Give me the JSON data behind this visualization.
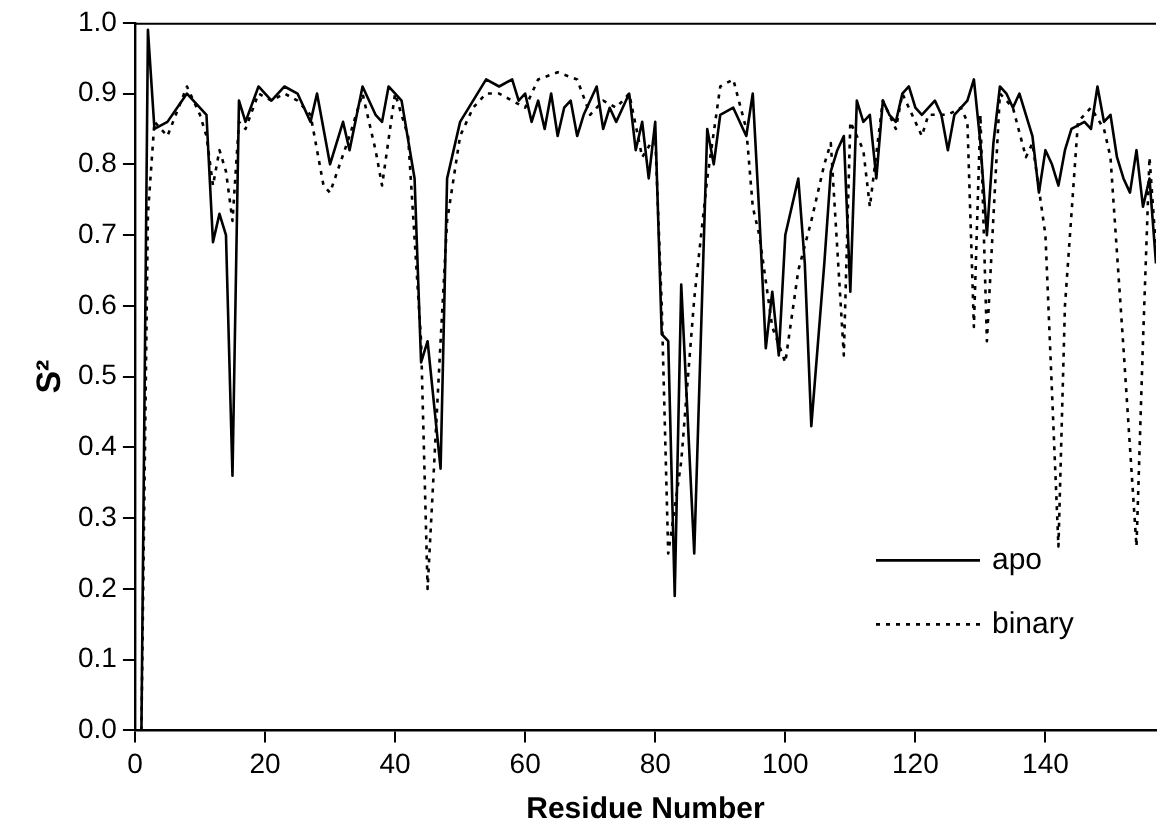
{
  "chart_data": {
    "type": "line",
    "xlabel": "Residue Number",
    "ylabel": "S²",
    "xlim": [
      0,
      157
    ],
    "xticks": [
      0,
      20,
      40,
      60,
      80,
      100,
      120,
      140
    ],
    "ylim": [
      0,
      1
    ],
    "yticks": [
      {
        "value": 0,
        "label": "0.0"
      },
      {
        "value": 0.1,
        "label": "0.1"
      },
      {
        "value": 0.2,
        "label": "0.2"
      },
      {
        "value": 0.3,
        "label": "0.3"
      },
      {
        "value": 0.4,
        "label": "0.4"
      },
      {
        "value": 0.5,
        "label": "0.5"
      },
      {
        "value": 0.6,
        "label": "0.6"
      },
      {
        "value": 0.7,
        "label": "0.7"
      },
      {
        "value": 0.8,
        "label": "0.8"
      },
      {
        "value": 0.9,
        "label": "0.9"
      },
      {
        "value": 1,
        "label": "1.0"
      }
    ],
    "grid": false,
    "legend": "bottom right",
    "marker": "none",
    "series": [
      {
        "name": "apo",
        "color": "#000000",
        "line_style": "solid",
        "x": [
          1,
          2,
          3,
          5,
          8,
          11,
          12,
          13,
          14,
          15,
          16,
          17,
          19,
          21,
          23,
          25,
          27,
          28,
          30,
          32,
          33,
          35,
          37,
          38,
          39,
          41,
          43,
          44,
          45,
          47,
          48,
          50,
          52,
          54,
          56,
          58,
          59,
          60,
          61,
          62,
          63,
          64,
          65,
          66,
          67,
          68,
          69,
          71,
          72,
          73,
          74,
          75,
          76,
          77,
          78,
          79,
          80,
          81,
          82,
          83,
          84,
          86,
          88,
          89,
          90,
          92,
          94,
          95,
          96,
          97,
          98,
          99,
          100,
          102,
          103,
          104,
          106,
          107,
          108,
          109,
          110,
          111,
          112,
          113,
          114,
          115,
          116,
          117,
          118,
          119,
          120,
          121,
          123,
          124,
          125,
          126,
          128,
          129,
          130,
          131,
          132,
          133,
          134,
          135,
          136,
          138,
          139,
          140,
          141,
          142,
          143,
          144,
          146,
          147,
          148,
          149,
          150,
          151,
          152,
          153,
          154,
          155,
          156,
          157
        ],
        "values": [
          0.0,
          0.99,
          0.85,
          0.86,
          0.9,
          0.87,
          0.69,
          0.73,
          0.7,
          0.36,
          0.89,
          0.86,
          0.91,
          0.89,
          0.91,
          0.9,
          0.86,
          0.9,
          0.8,
          0.86,
          0.82,
          0.91,
          0.87,
          0.86,
          0.91,
          0.89,
          0.78,
          0.52,
          0.55,
          0.37,
          0.78,
          0.86,
          0.89,
          0.92,
          0.91,
          0.92,
          0.89,
          0.9,
          0.86,
          0.89,
          0.85,
          0.9,
          0.84,
          0.88,
          0.89,
          0.84,
          0.87,
          0.91,
          0.85,
          0.88,
          0.86,
          0.88,
          0.9,
          0.82,
          0.86,
          0.78,
          0.86,
          0.56,
          0.55,
          0.19,
          0.63,
          0.25,
          0.85,
          0.8,
          0.87,
          0.88,
          0.84,
          0.9,
          0.73,
          0.54,
          0.62,
          0.53,
          0.7,
          0.78,
          0.66,
          0.43,
          0.66,
          0.79,
          0.82,
          0.84,
          0.62,
          0.89,
          0.86,
          0.87,
          0.78,
          0.89,
          0.87,
          0.86,
          0.9,
          0.91,
          0.88,
          0.87,
          0.89,
          0.87,
          0.82,
          0.87,
          0.89,
          0.92,
          0.83,
          0.7,
          0.83,
          0.91,
          0.9,
          0.88,
          0.9,
          0.84,
          0.76,
          0.82,
          0.8,
          0.77,
          0.82,
          0.85,
          0.86,
          0.85,
          0.91,
          0.86,
          0.87,
          0.81,
          0.78,
          0.76,
          0.82,
          0.74,
          0.78,
          0.66
        ]
      },
      {
        "name": "binary",
        "color": "#000000",
        "line_style": "dotted",
        "x": [
          1,
          2,
          3,
          5,
          8,
          10,
          11,
          12,
          13,
          14,
          15,
          16,
          17,
          19,
          21,
          23,
          25,
          27,
          29,
          30,
          33,
          35,
          37,
          38,
          40,
          42,
          44,
          45,
          47,
          48,
          50,
          52,
          54,
          56,
          58,
          60,
          62,
          65,
          68,
          70,
          72,
          74,
          76,
          78,
          80,
          81,
          82,
          84,
          86,
          88,
          90,
          92,
          94,
          95,
          96,
          98,
          100,
          102,
          104,
          106,
          107,
          109,
          110,
          112,
          113,
          115,
          117,
          118,
          120,
          121,
          122,
          125,
          127,
          128,
          129,
          130,
          131,
          133,
          135,
          137,
          138,
          140,
          142,
          143,
          145,
          147,
          149,
          150,
          152,
          154,
          155,
          156,
          157
        ],
        "values": [
          0.0,
          0.73,
          0.86,
          0.84,
          0.91,
          0.87,
          0.84,
          0.77,
          0.82,
          0.79,
          0.72,
          0.86,
          0.85,
          0.9,
          0.89,
          0.9,
          0.89,
          0.87,
          0.77,
          0.76,
          0.84,
          0.9,
          0.82,
          0.77,
          0.9,
          0.84,
          0.55,
          0.2,
          0.55,
          0.72,
          0.84,
          0.88,
          0.9,
          0.9,
          0.89,
          0.88,
          0.92,
          0.93,
          0.92,
          0.87,
          0.89,
          0.88,
          0.9,
          0.81,
          0.84,
          0.6,
          0.25,
          0.38,
          0.61,
          0.78,
          0.91,
          0.92,
          0.85,
          0.74,
          0.7,
          0.57,
          0.52,
          0.65,
          0.72,
          0.8,
          0.83,
          0.53,
          0.86,
          0.82,
          0.74,
          0.89,
          0.85,
          0.9,
          0.86,
          0.84,
          0.87,
          0.87,
          0.88,
          0.86,
          0.57,
          0.87,
          0.55,
          0.9,
          0.88,
          0.81,
          0.83,
          0.7,
          0.26,
          0.6,
          0.86,
          0.88,
          0.85,
          0.81,
          0.54,
          0.26,
          0.55,
          0.81,
          0.68
        ]
      }
    ]
  }
}
